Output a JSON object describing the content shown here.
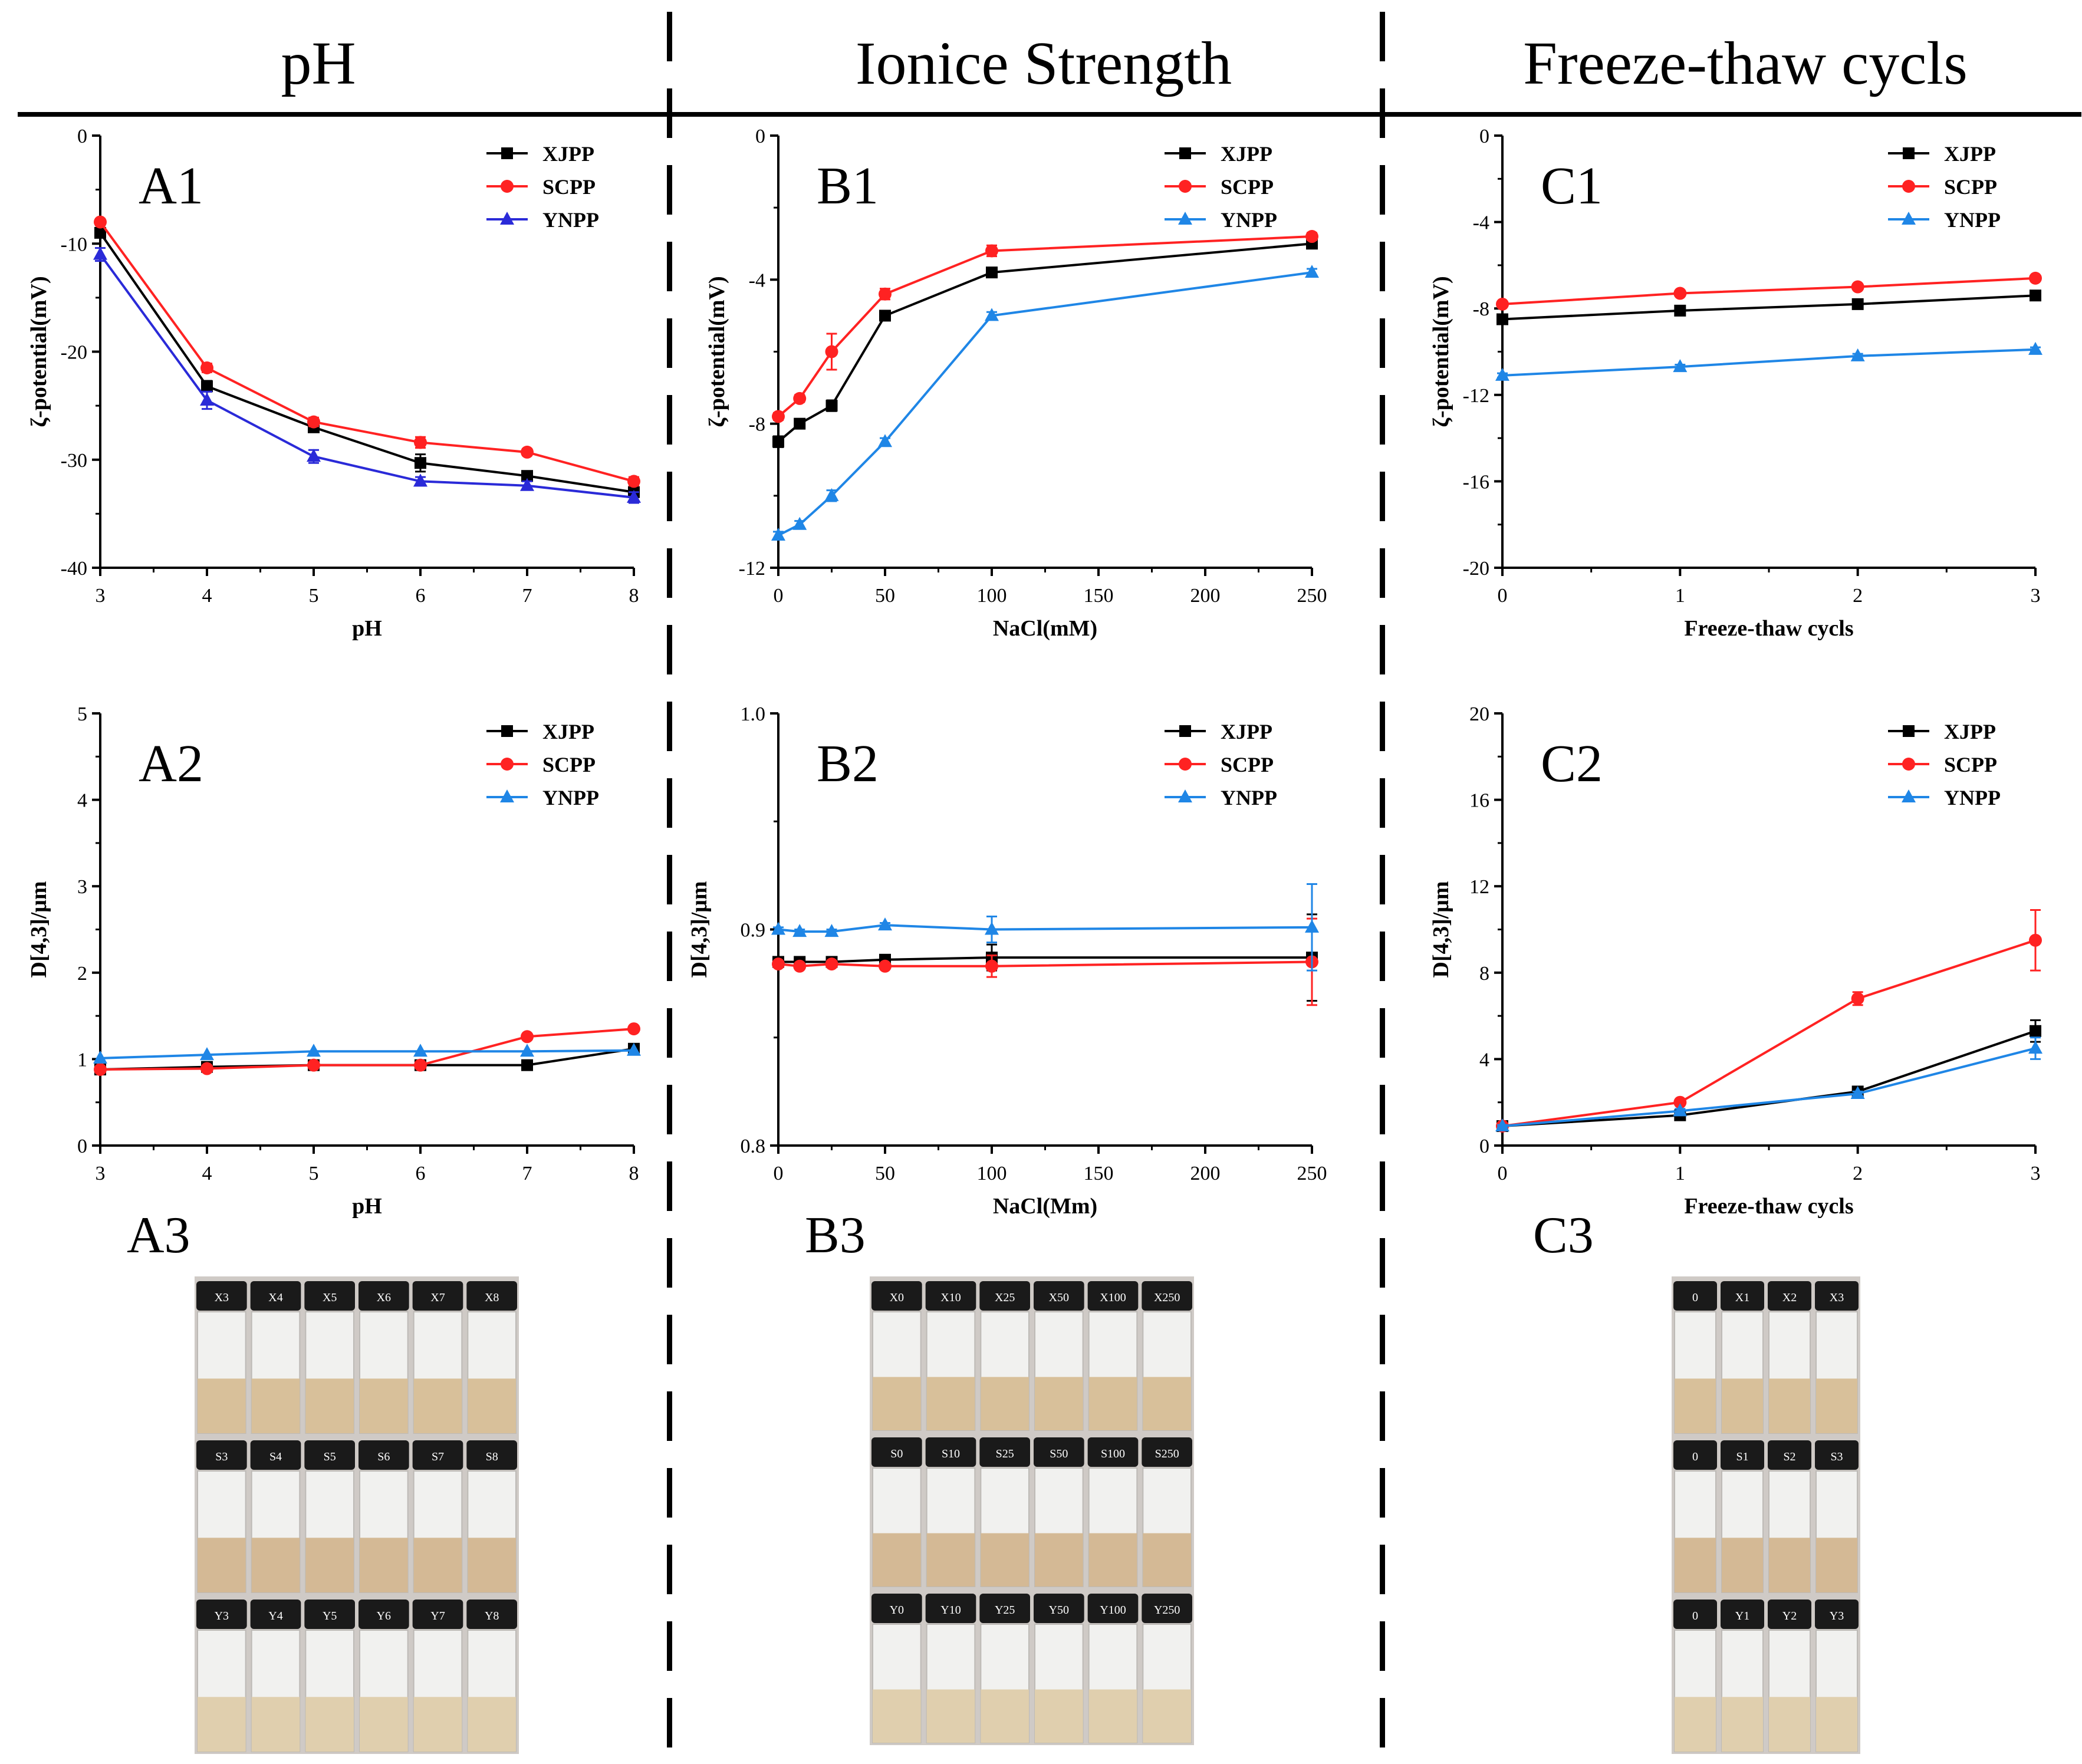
{
  "columns": [
    {
      "title": "pH"
    },
    {
      "title": "Ionice Strength"
    },
    {
      "title": "Freeze-thaw cycls"
    }
  ],
  "series_names": [
    "XJPP",
    "SCPP",
    "YNPP"
  ],
  "colors": {
    "XJPP": "#000000",
    "SCPP": "#ff2222",
    "YNPP_A1": "#2a2ad8",
    "YNPP": "#1f86e6",
    "axis": "#000000"
  },
  "chart_data": [
    {
      "panel": "A1",
      "type": "line",
      "xlabel": "pH",
      "ylabel": "ζ-potential(mV)",
      "xlim": [
        3,
        8
      ],
      "ylim": [
        -40,
        0
      ],
      "xticks": [
        3,
        4,
        5,
        6,
        7,
        8
      ],
      "yticks": [
        -40,
        -30,
        -20,
        -10,
        0
      ],
      "legend": "top-right",
      "series": [
        {
          "name": "XJPP",
          "x": [
            3,
            4,
            5,
            6,
            7,
            8
          ],
          "values": [
            -9.0,
            -23.2,
            -27.0,
            -30.3,
            -31.5,
            -33.0
          ],
          "errors": [
            0.4,
            0.5,
            0.4,
            0.8,
            0.4,
            0.4
          ]
        },
        {
          "name": "SCPP",
          "x": [
            3,
            4,
            5,
            6,
            7,
            8
          ],
          "values": [
            -8.0,
            -21.5,
            -26.5,
            -28.4,
            -29.3,
            -32.0
          ],
          "errors": [
            0.3,
            0.4,
            0.4,
            0.5,
            0.3,
            0.4
          ]
        },
        {
          "name": "YNPP",
          "x": [
            3,
            4,
            5,
            6,
            7,
            8
          ],
          "values": [
            -11.0,
            -24.5,
            -29.7,
            -32.0,
            -32.4,
            -33.5
          ],
          "errors": [
            0.6,
            0.8,
            0.6,
            0.4,
            0.4,
            0.5
          ]
        }
      ]
    },
    {
      "panel": "B1",
      "type": "line",
      "xlabel": "NaCl(mM)",
      "ylabel": "ζ-potential(mV)",
      "xlim": [
        0,
        250
      ],
      "ylim": [
        -12,
        0
      ],
      "xticks": [
        0,
        50,
        100,
        150,
        200,
        250
      ],
      "yticks": [
        -12,
        -8,
        -4,
        0
      ],
      "legend": "top-right",
      "series": [
        {
          "name": "XJPP",
          "x": [
            0,
            10,
            25,
            50,
            100,
            250
          ],
          "values": [
            -8.5,
            -8.0,
            -7.5,
            -5.0,
            -3.8,
            -3.0
          ],
          "errors": [
            0.15,
            0.1,
            0.15,
            0.1,
            0.1,
            0.1
          ]
        },
        {
          "name": "SCPP",
          "x": [
            0,
            10,
            25,
            50,
            100,
            250
          ],
          "values": [
            -7.8,
            -7.3,
            -6.0,
            -4.4,
            -3.2,
            -2.8
          ],
          "errors": [
            0.1,
            0.1,
            0.5,
            0.15,
            0.15,
            0.1
          ]
        },
        {
          "name": "YNPP",
          "x": [
            0,
            10,
            25,
            50,
            100,
            250
          ],
          "values": [
            -11.1,
            -10.8,
            -10.0,
            -8.5,
            -5.0,
            -3.8
          ],
          "errors": [
            0.1,
            0.1,
            0.15,
            0.1,
            0.1,
            0.1
          ]
        }
      ]
    },
    {
      "panel": "C1",
      "type": "line",
      "xlabel": "Freeze-thaw cycls",
      "ylabel": "ζ-potential(mV)",
      "xlim": [
        0,
        3
      ],
      "ylim": [
        -20,
        0
      ],
      "xticks": [
        0,
        1,
        2,
        3
      ],
      "yticks": [
        -20,
        -16,
        -12,
        -8,
        -4,
        0
      ],
      "legend": "top-right",
      "series": [
        {
          "name": "XJPP",
          "x": [
            0,
            1,
            2,
            3
          ],
          "values": [
            -8.5,
            -8.1,
            -7.8,
            -7.4
          ],
          "errors": [
            0.1,
            0.1,
            0.1,
            0.1
          ]
        },
        {
          "name": "SCPP",
          "x": [
            0,
            1,
            2,
            3
          ],
          "values": [
            -7.8,
            -7.3,
            -7.0,
            -6.6
          ],
          "errors": [
            0.1,
            0.1,
            0.1,
            0.1
          ]
        },
        {
          "name": "YNPP",
          "x": [
            0,
            1,
            2,
            3
          ],
          "values": [
            -11.1,
            -10.7,
            -10.2,
            -9.9
          ],
          "errors": [
            0.1,
            0.1,
            0.1,
            0.1
          ]
        }
      ]
    },
    {
      "panel": "A2",
      "type": "line",
      "xlabel": "pH",
      "ylabel": "D[4,3]/μm",
      "xlim": [
        3,
        8
      ],
      "ylim": [
        0,
        5
      ],
      "xticks": [
        3,
        4,
        5,
        6,
        7,
        8
      ],
      "yticks": [
        0,
        1,
        2,
        3,
        4,
        5
      ],
      "legend": "top-right",
      "series": [
        {
          "name": "XJPP",
          "x": [
            3,
            4,
            5,
            6,
            7,
            8
          ],
          "values": [
            0.88,
            0.91,
            0.93,
            0.93,
            0.93,
            1.12
          ],
          "errors": [
            0,
            0,
            0,
            0,
            0,
            0
          ]
        },
        {
          "name": "SCPP",
          "x": [
            3,
            4,
            5,
            6,
            7,
            8
          ],
          "values": [
            0.88,
            0.89,
            0.93,
            0.93,
            1.26,
            1.35
          ],
          "errors": [
            0,
            0,
            0,
            0,
            0,
            0
          ]
        },
        {
          "name": "YNPP",
          "x": [
            3,
            4,
            5,
            6,
            7,
            8
          ],
          "values": [
            1.01,
            1.05,
            1.09,
            1.09,
            1.09,
            1.1
          ],
          "errors": [
            0,
            0,
            0,
            0,
            0,
            0
          ]
        }
      ]
    },
    {
      "panel": "B2",
      "type": "line",
      "xlabel": "NaCl(Mm)",
      "ylabel": "D[4,3]/μm",
      "xlim": [
        0,
        250
      ],
      "ylim": [
        0.8,
        1.0
      ],
      "xticks": [
        0,
        50,
        100,
        150,
        200,
        250
      ],
      "yticks": [
        0.8,
        0.9,
        1.0
      ],
      "legend": "top-right",
      "series": [
        {
          "name": "XJPP",
          "x": [
            0,
            10,
            25,
            50,
            100,
            250
          ],
          "values": [
            0.885,
            0.885,
            0.885,
            0.886,
            0.887,
            0.887
          ],
          "errors": [
            0.001,
            0.001,
            0.001,
            0.001,
            0.006,
            0.02
          ]
        },
        {
          "name": "SCPP",
          "x": [
            0,
            10,
            25,
            50,
            100,
            250
          ],
          "values": [
            0.884,
            0.883,
            0.884,
            0.883,
            0.883,
            0.885
          ],
          "errors": [
            0.001,
            0.001,
            0.001,
            0.001,
            0.005,
            0.02
          ]
        },
        {
          "name": "YNPP",
          "x": [
            0,
            10,
            25,
            50,
            100,
            250
          ],
          "values": [
            0.9,
            0.899,
            0.899,
            0.902,
            0.9,
            0.901
          ],
          "errors": [
            0.001,
            0.001,
            0.001,
            0.001,
            0.006,
            0.02
          ]
        }
      ]
    },
    {
      "panel": "C2",
      "type": "line",
      "xlabel": "Freeze-thaw cycls",
      "ylabel": "D[4,3]/μm",
      "xlim": [
        0,
        3
      ],
      "ylim": [
        0,
        20
      ],
      "xticks": [
        0,
        1,
        2,
        3
      ],
      "yticks": [
        0,
        4,
        8,
        12,
        16,
        20
      ],
      "legend": "top-right",
      "series": [
        {
          "name": "XJPP",
          "x": [
            0,
            1,
            2,
            3
          ],
          "values": [
            0.9,
            1.4,
            2.5,
            5.3
          ],
          "errors": [
            0.05,
            0.1,
            0.1,
            0.5
          ]
        },
        {
          "name": "SCPP",
          "x": [
            0,
            1,
            2,
            3
          ],
          "values": [
            0.9,
            2.0,
            6.8,
            9.5
          ],
          "errors": [
            0.05,
            0.1,
            0.3,
            1.4
          ]
        },
        {
          "name": "YNPP",
          "x": [
            0,
            1,
            2,
            3
          ],
          "values": [
            0.9,
            1.6,
            2.4,
            4.5
          ],
          "errors": [
            0.05,
            0.1,
            0.1,
            0.5
          ]
        }
      ]
    }
  ],
  "photo_panels": [
    {
      "panel": "A3",
      "rows": [
        [
          "X3",
          "X4",
          "X5",
          "X6",
          "X7",
          "X8"
        ],
        [
          "S3",
          "S4",
          "S5",
          "S6",
          "S7",
          "S8"
        ],
        [
          "Y3",
          "Y4",
          "Y5",
          "Y6",
          "Y7",
          "Y8"
        ]
      ]
    },
    {
      "panel": "B3",
      "rows": [
        [
          "X0",
          "X10",
          "X25",
          "X50",
          "X100",
          "X250"
        ],
        [
          "S0",
          "S10",
          "S25",
          "S50",
          "S100",
          "S250"
        ],
        [
          "Y0",
          "Y10",
          "Y25",
          "Y50",
          "Y100",
          "Y250"
        ]
      ]
    },
    {
      "panel": "C3",
      "rows": [
        [
          "0",
          "X1",
          "X2",
          "X3"
        ],
        [
          "0",
          "S1",
          "S2",
          "S3"
        ],
        [
          "0",
          "Y1",
          "Y2",
          "Y3"
        ]
      ]
    }
  ]
}
